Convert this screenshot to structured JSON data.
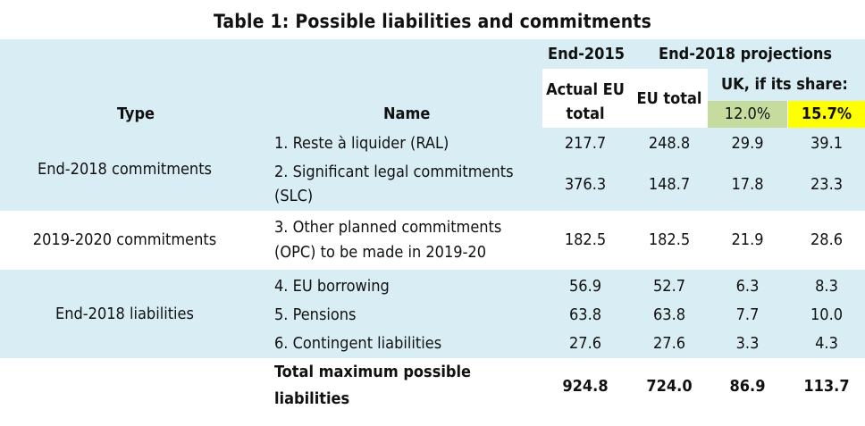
{
  "title": "Table 1: Possible liabilities and commitments",
  "header": {
    "end2015": "End-2015",
    "end2018": "End-2018 projections",
    "type": "Type",
    "name": "Name",
    "actual_line1": "Actual EU",
    "actual_line2": "total",
    "eu_total": "EU total",
    "uk_share": "UK, if its share:",
    "share1": "12.0%",
    "share2": "15.7%"
  },
  "colors": {
    "band": "#d8edf4",
    "share1_bg": "#c6dc9f",
    "share2_bg": "#ffff00"
  },
  "groups": [
    {
      "type": "End-2018 commitments",
      "rows": [
        {
          "name": [
            "1. Reste à liquider (RAL)"
          ],
          "actual": "217.7",
          "eu": "248.8",
          "uk12": "29.9",
          "uk157": "39.1"
        },
        {
          "name": [
            "2. Significant legal commitments",
            "(SLC)"
          ],
          "actual": "376.3",
          "eu": "148.7",
          "uk12": "17.8",
          "uk157": "23.3"
        }
      ]
    },
    {
      "type": "2019-2020 commitments",
      "rows": [
        {
          "name": [
            "3. Other planned commitments",
            "(OPC) to be made in 2019-20"
          ],
          "actual": "182.5",
          "eu": "182.5",
          "uk12": "21.9",
          "uk157": "28.6"
        }
      ]
    },
    {
      "type": "End-2018 liabilities",
      "rows": [
        {
          "name": [
            "4. EU borrowing"
          ],
          "actual": "56.9",
          "eu": "52.7",
          "uk12": "6.3",
          "uk157": "8.3"
        },
        {
          "name": [
            "5. Pensions"
          ],
          "actual": "63.8",
          "eu": "63.8",
          "uk12": "7.7",
          "uk157": "10.0"
        },
        {
          "name": [
            "6. Contingent liabilities"
          ],
          "actual": "27.6",
          "eu": "27.6",
          "uk12": "3.3",
          "uk157": "4.3"
        }
      ]
    }
  ],
  "total": {
    "name": [
      "Total maximum possible",
      "liabilities"
    ],
    "actual": "924.8",
    "eu": "724.0",
    "uk12": "86.9",
    "uk157": "113.7"
  }
}
